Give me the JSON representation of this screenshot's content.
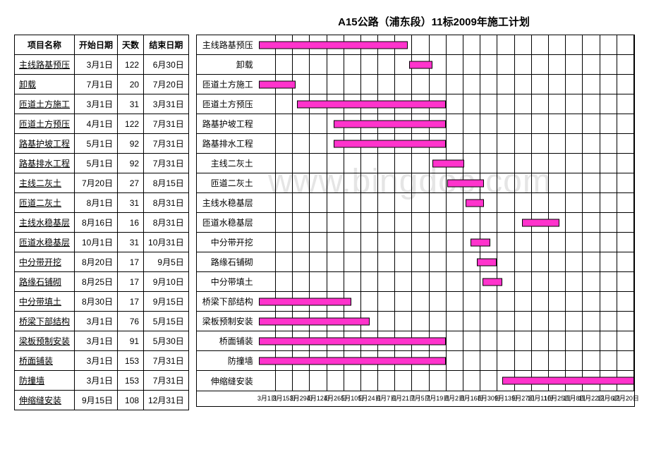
{
  "title": "A15公路（浦东段）11标2009年施工计划",
  "watermark": "www.bingdoc.com",
  "colors": {
    "bar_fill": "#ff33cc",
    "bar_border": "#000000",
    "grid": "#000000",
    "background": "#ffffff"
  },
  "table": {
    "headers": [
      "项目名称",
      "开始日期",
      "天数",
      "结束日期"
    ],
    "rows": [
      {
        "name": "主线路基预压",
        "start": "3月1日",
        "days": 122,
        "end": "6月30日"
      },
      {
        "name": "卸载",
        "start": "7月1日",
        "days": 20,
        "end": "7月20日"
      },
      {
        "name": "匝道土方施工",
        "start": "3月1日",
        "days": 31,
        "end": "3月31日"
      },
      {
        "name": "匝道土方预压",
        "start": "4月1日",
        "days": 122,
        "end": "7月31日"
      },
      {
        "name": "路基护坡工程",
        "start": "5月1日",
        "days": 92,
        "end": "7月31日"
      },
      {
        "name": "路基排水工程",
        "start": "5月1日",
        "days": 92,
        "end": "7月31日"
      },
      {
        "name": "主线二灰土",
        "start": "7月20日",
        "days": 27,
        "end": "8月15日"
      },
      {
        "name": "匝道二灰土",
        "start": "8月1日",
        "days": 31,
        "end": "8月31日"
      },
      {
        "name": "主线水稳基层",
        "start": "8月16日",
        "days": 16,
        "end": "8月31日"
      },
      {
        "name": "匝道水稳基层",
        "start": "10月1日",
        "days": 31,
        "end": "10月31日"
      },
      {
        "name": "中分带开挖",
        "start": "8月20日",
        "days": 17,
        "end": "9月5日"
      },
      {
        "name": "路缘石铺砌",
        "start": "8月25日",
        "days": 17,
        "end": "9月10日"
      },
      {
        "name": "中分带填土",
        "start": "8月30日",
        "days": 17,
        "end": "9月15日"
      },
      {
        "name": "桥梁下部结构",
        "start": "3月1日",
        "days": 76,
        "end": "5月15日"
      },
      {
        "name": "梁板预制安装",
        "start": "3月1日",
        "days": 91,
        "end": "5月30日"
      },
      {
        "name": "桥面铺装",
        "start": "3月1日",
        "days": 153,
        "end": "7月31日"
      },
      {
        "name": "防撞墙",
        "start": "3月1日",
        "days": 153,
        "end": "7月31日"
      },
      {
        "name": "伸缩缝安装",
        "start": "9月15日",
        "days": 108,
        "end": "12月31日"
      }
    ]
  },
  "gantt": {
    "bar_color": "#ff33cc",
    "date_range": {
      "start_day": 60,
      "end_day": 365
    },
    "grid_columns": 22,
    "tasks": [
      {
        "label": "主线路基预压",
        "start_day": 60,
        "end_day": 181
      },
      {
        "label": "卸载",
        "start_day": 182,
        "end_day": 201
      },
      {
        "label": "匝道土方施工",
        "start_day": 60,
        "end_day": 90
      },
      {
        "label": "匝道土方预压",
        "start_day": 91,
        "end_day": 212
      },
      {
        "label": "路基护坡工程",
        "start_day": 121,
        "end_day": 212
      },
      {
        "label": "路基排水工程",
        "start_day": 121,
        "end_day": 212
      },
      {
        "label": "主线二灰土",
        "start_day": 201,
        "end_day": 227
      },
      {
        "label": "匝道二灰土",
        "start_day": 213,
        "end_day": 243
      },
      {
        "label": "主线水稳基层",
        "start_day": 228,
        "end_day": 243
      },
      {
        "label": "匝道水稳基层",
        "start_day": 274,
        "end_day": 304
      },
      {
        "label": "中分带开挖",
        "start_day": 232,
        "end_day": 248
      },
      {
        "label": "路缘石铺砌",
        "start_day": 237,
        "end_day": 253
      },
      {
        "label": "中分带填土",
        "start_day": 242,
        "end_day": 258
      },
      {
        "label": "桥梁下部结构",
        "start_day": 60,
        "end_day": 135
      },
      {
        "label": "梁板预制安装",
        "start_day": 60,
        "end_day": 150
      },
      {
        "label": "桥面铺装",
        "start_day": 60,
        "end_day": 212
      },
      {
        "label": "防撞墙",
        "start_day": 60,
        "end_day": 212
      },
      {
        "label": "伸缩缝安装",
        "start_day": 258,
        "end_day": 365
      }
    ],
    "x_ticks": [
      "3月1日",
      "3月15日",
      "3月29日",
      "4月12日",
      "4月26日",
      "5月10日",
      "5月24日",
      "6月7日",
      "6月21日",
      "7月5日",
      "7月19日",
      "8月2日",
      "8月16日",
      "8月30日",
      "9月13日",
      "9月27日",
      "10月11日",
      "10月25日",
      "11月8日",
      "11月22日",
      "12月6日",
      "12月20日"
    ]
  }
}
